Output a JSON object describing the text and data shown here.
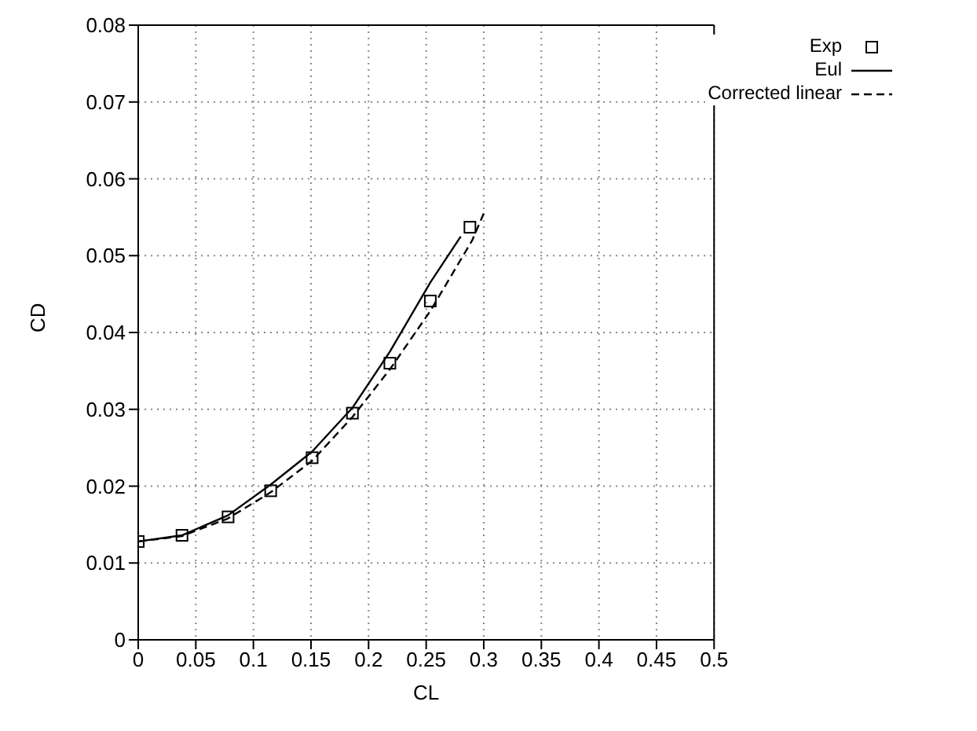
{
  "chart_data": {
    "type": "line",
    "xlabel": "CL",
    "ylabel": "CD",
    "xlim": [
      0,
      0.5
    ],
    "xticks": [
      0,
      0.05,
      0.1,
      0.15,
      0.2,
      0.25,
      0.3,
      0.35,
      0.4,
      0.45,
      0.5
    ],
    "ylim": [
      0,
      0.08
    ],
    "yticks": [
      0,
      0.01,
      0.02,
      0.03,
      0.04,
      0.05,
      0.06,
      0.07,
      0.08
    ],
    "grid": true,
    "legend": "top right",
    "series": [
      {
        "name": "Exp",
        "type": "scatter",
        "marker": "square",
        "color": "#000000",
        "x": [
          0,
          0.038,
          0.078,
          0.115,
          0.151,
          0.186,
          0.2185,
          0.2536,
          0.288
        ],
        "values": [
          0.0128,
          0.0136,
          0.016,
          0.0194,
          0.0237,
          0.0295,
          0.036,
          0.0441,
          0.0537
        ]
      },
      {
        "name": "Eul",
        "type": "line",
        "line_style": "solid",
        "color": "#000000",
        "x": [
          0,
          0.038,
          0.078,
          0.115,
          0.151,
          0.186,
          0.2185,
          0.2536,
          0.28
        ],
        "values": [
          0.0128,
          0.0136,
          0.0162,
          0.0202,
          0.0245,
          0.0302,
          0.0375,
          0.0465,
          0.0525
        ]
      },
      {
        "name": "Corrected linear",
        "type": "line",
        "line_style": "dashed",
        "color": "#000000",
        "x": [
          0,
          0.038,
          0.078,
          0.115,
          0.151,
          0.186,
          0.2185,
          0.2536,
          0.29,
          0.3
        ],
        "values": [
          0.0128,
          0.0135,
          0.0158,
          0.0192,
          0.0233,
          0.029,
          0.0352,
          0.0428,
          0.052,
          0.0555
        ]
      }
    ]
  }
}
